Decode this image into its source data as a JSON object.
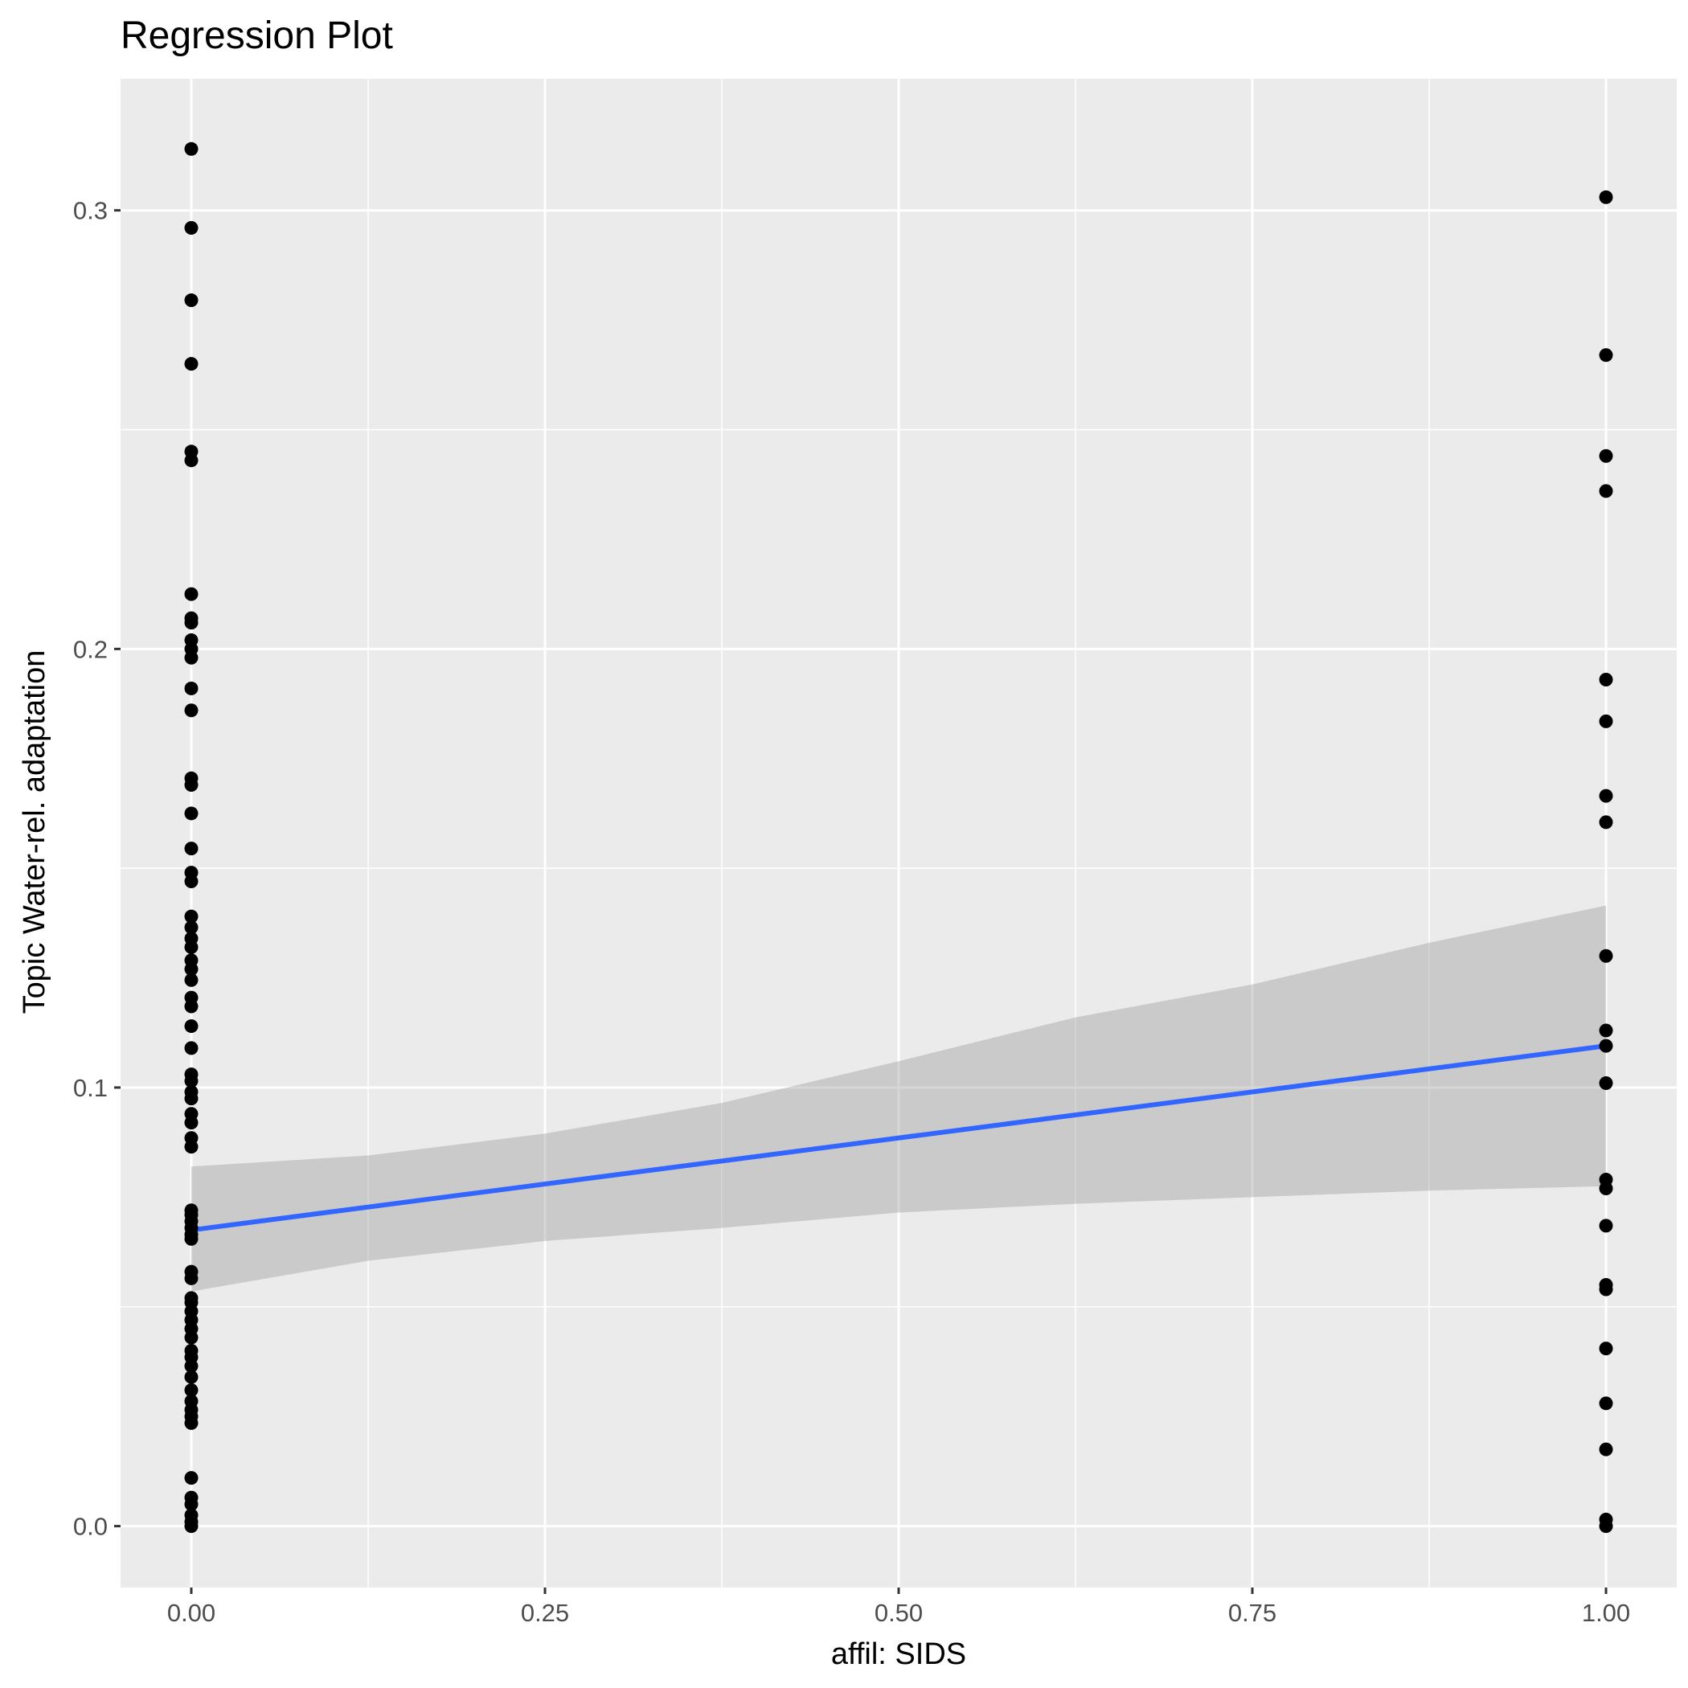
{
  "chart_data": {
    "type": "scatter",
    "title": "Regression Plot",
    "xlabel": "affil: SIDS",
    "ylabel": "Topic Water-rel. adaptation",
    "xlim": [
      -0.05,
      1.05
    ],
    "ylim": [
      -0.014,
      0.33
    ],
    "x_ticks": [
      0.0,
      0.25,
      0.5,
      0.75,
      1.0
    ],
    "x_tick_labels": [
      "0.00",
      "0.25",
      "0.50",
      "0.75",
      "1.00"
    ],
    "y_ticks": [
      0.0,
      0.1,
      0.2,
      0.3
    ],
    "y_tick_labels": [
      "0.0",
      "0.1",
      "0.2",
      "0.3"
    ],
    "grid": true,
    "legend": "none",
    "colors": {
      "panel": "#EBEBEB",
      "grid": "#FFFFFF",
      "points": "#000000",
      "fit_line": "#3366FF",
      "ribbon": "#999999",
      "tick_text": "#4D4D4D",
      "tick_mark": "#333333"
    },
    "points": [
      {
        "x": 0,
        "y": 0.314
      },
      {
        "x": 0,
        "y": 0.296
      },
      {
        "x": 0,
        "y": 0.2795
      },
      {
        "x": 0,
        "y": 0.265
      },
      {
        "x": 0,
        "y": 0.245
      },
      {
        "x": 0,
        "y": 0.243
      },
      {
        "x": 0,
        "y": 0.2125
      },
      {
        "x": 0,
        "y": 0.207
      },
      {
        "x": 0,
        "y": 0.206
      },
      {
        "x": 0,
        "y": 0.202
      },
      {
        "x": 0,
        "y": 0.2
      },
      {
        "x": 0,
        "y": 0.198
      },
      {
        "x": 0,
        "y": 0.191
      },
      {
        "x": 0,
        "y": 0.186
      },
      {
        "x": 0,
        "y": 0.1705
      },
      {
        "x": 0,
        "y": 0.169
      },
      {
        "x": 0,
        "y": 0.1625
      },
      {
        "x": 0,
        "y": 0.1545
      },
      {
        "x": 0,
        "y": 0.149
      },
      {
        "x": 0,
        "y": 0.147
      },
      {
        "x": 0,
        "y": 0.139
      },
      {
        "x": 0,
        "y": 0.1365
      },
      {
        "x": 0,
        "y": 0.134
      },
      {
        "x": 0,
        "y": 0.132
      },
      {
        "x": 0,
        "y": 0.129
      },
      {
        "x": 0,
        "y": 0.127
      },
      {
        "x": 0,
        "y": 0.1245
      },
      {
        "x": 0,
        "y": 0.1205
      },
      {
        "x": 0,
        "y": 0.1185
      },
      {
        "x": 0,
        "y": 0.114
      },
      {
        "x": 0,
        "y": 0.109
      },
      {
        "x": 0,
        "y": 0.103
      },
      {
        "x": 0,
        "y": 0.1015
      },
      {
        "x": 0,
        "y": 0.099
      },
      {
        "x": 0,
        "y": 0.0975
      },
      {
        "x": 0,
        "y": 0.094
      },
      {
        "x": 0,
        "y": 0.092
      },
      {
        "x": 0,
        "y": 0.0885
      },
      {
        "x": 0,
        "y": 0.0865
      },
      {
        "x": 0,
        "y": 0.072
      },
      {
        "x": 0,
        "y": 0.071
      },
      {
        "x": 0,
        "y": 0.0695
      },
      {
        "x": 0,
        "y": 0.068
      },
      {
        "x": 0,
        "y": 0.0665
      },
      {
        "x": 0,
        "y": 0.0655
      },
      {
        "x": 0,
        "y": 0.058
      },
      {
        "x": 0,
        "y": 0.0565
      },
      {
        "x": 0,
        "y": 0.052
      },
      {
        "x": 0,
        "y": 0.051
      },
      {
        "x": 0,
        "y": 0.049
      },
      {
        "x": 0,
        "y": 0.047
      },
      {
        "x": 0,
        "y": 0.045
      },
      {
        "x": 0,
        "y": 0.043
      },
      {
        "x": 0,
        "y": 0.04
      },
      {
        "x": 0,
        "y": 0.0385
      },
      {
        "x": 0,
        "y": 0.0365
      },
      {
        "x": 0,
        "y": 0.034
      },
      {
        "x": 0,
        "y": 0.031
      },
      {
        "x": 0,
        "y": 0.0285
      },
      {
        "x": 0,
        "y": 0.0265
      },
      {
        "x": 0,
        "y": 0.025
      },
      {
        "x": 0,
        "y": 0.0235
      },
      {
        "x": 0,
        "y": 0.011
      },
      {
        "x": 0,
        "y": 0.0065
      },
      {
        "x": 0,
        "y": 0.005
      },
      {
        "x": 0,
        "y": 0.0025
      },
      {
        "x": 0,
        "y": 0.001
      },
      {
        "x": 0,
        "y": 0.0
      },
      {
        "x": 1,
        "y": 0.303
      },
      {
        "x": 1,
        "y": 0.267
      },
      {
        "x": 1,
        "y": 0.244
      },
      {
        "x": 1,
        "y": 0.236
      },
      {
        "x": 1,
        "y": 0.193
      },
      {
        "x": 1,
        "y": 0.1835
      },
      {
        "x": 1,
        "y": 0.1665
      },
      {
        "x": 1,
        "y": 0.1605
      },
      {
        "x": 1,
        "y": 0.13
      },
      {
        "x": 1,
        "y": 0.113
      },
      {
        "x": 1,
        "y": 0.1095
      },
      {
        "x": 1,
        "y": 0.101
      },
      {
        "x": 1,
        "y": 0.079
      },
      {
        "x": 1,
        "y": 0.077
      },
      {
        "x": 1,
        "y": 0.0685
      },
      {
        "x": 1,
        "y": 0.055
      },
      {
        "x": 1,
        "y": 0.054
      },
      {
        "x": 1,
        "y": 0.0405
      },
      {
        "x": 1,
        "y": 0.028
      },
      {
        "x": 1,
        "y": 0.0175
      },
      {
        "x": 1,
        "y": 0.0015
      },
      {
        "x": 1,
        "y": 0.0
      }
    ],
    "fit_line": {
      "x": [
        0,
        1
      ],
      "y": [
        0.0675,
        0.1095
      ]
    },
    "confidence_band": {
      "x": [
        0,
        0.125,
        0.25,
        0.375,
        0.5,
        0.625,
        0.75,
        0.875,
        1
      ],
      "lower": [
        0.0535,
        0.0605,
        0.065,
        0.068,
        0.0715,
        0.0735,
        0.075,
        0.0765,
        0.0775
      ],
      "upper": [
        0.082,
        0.0845,
        0.0895,
        0.0965,
        0.106,
        0.116,
        0.1235,
        0.133,
        0.1415
      ]
    }
  }
}
